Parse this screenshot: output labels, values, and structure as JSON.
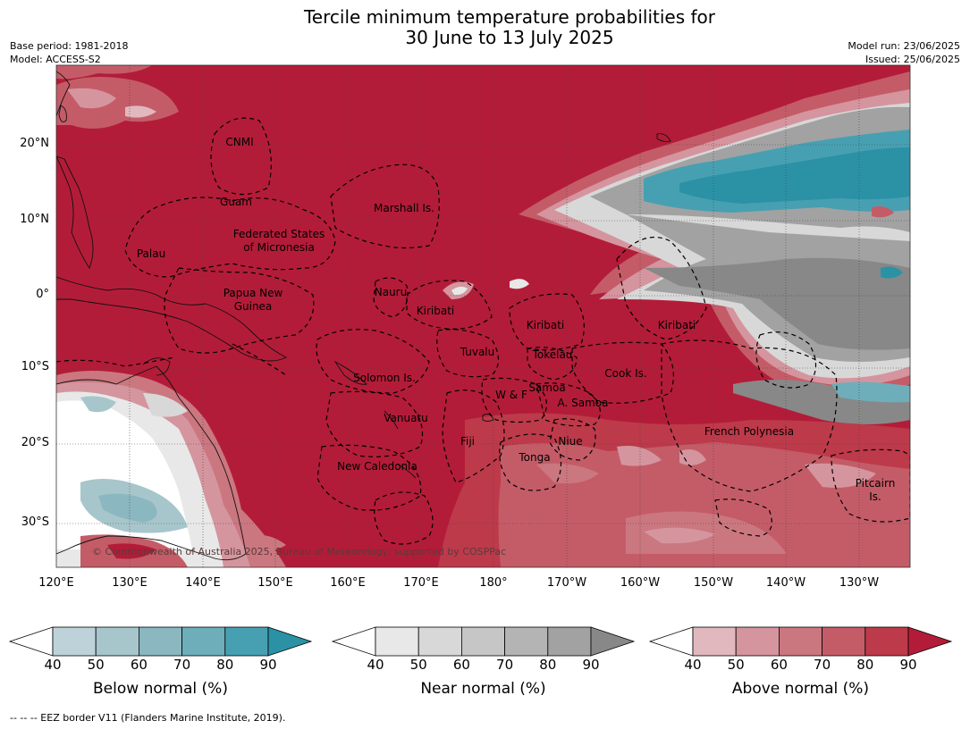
{
  "title": {
    "line1": "Tercile minimum temperature probabilities for",
    "line2": "30 June to 13 July 2025"
  },
  "info": {
    "base_period": "Base period: 1981-2018",
    "model": "Model: ACCESS-S2",
    "model_run": "Model run: 23/06/2025",
    "issued": "Issued: 25/06/2025"
  },
  "axes": {
    "lat_labels": [
      "20°N",
      "10°N",
      "0°",
      "10°S",
      "20°S",
      "30°S"
    ],
    "lon_labels": [
      "120°E",
      "130°E",
      "140°E",
      "150°E",
      "160°E",
      "170°E",
      "180°",
      "170°W",
      "160°W",
      "150°W",
      "140°W",
      "130°W"
    ]
  },
  "regions": [
    {
      "name": "CNMI"
    },
    {
      "name": "Guam"
    },
    {
      "name": "Marshall Is."
    },
    {
      "name": "Federated States"
    },
    {
      "name": "of Micronesia"
    },
    {
      "name": "Palau"
    },
    {
      "name": "Papua New"
    },
    {
      "name": "Guinea"
    },
    {
      "name": "Nauru"
    },
    {
      "name": "Kiribati"
    },
    {
      "name": "Kiribati"
    },
    {
      "name": "Kiribati"
    },
    {
      "name": "Tuvalu"
    },
    {
      "name": "Tokelau"
    },
    {
      "name": "Cook Is."
    },
    {
      "name": "Solomon Is."
    },
    {
      "name": "Samoa"
    },
    {
      "name": "W & F"
    },
    {
      "name": "A. Samoa"
    },
    {
      "name": "Vanuatu"
    },
    {
      "name": "Fiji"
    },
    {
      "name": "Niue"
    },
    {
      "name": "French Polynesia"
    },
    {
      "name": "Tonga"
    },
    {
      "name": "New Caledonia"
    },
    {
      "name": "Pitcairn"
    },
    {
      "name": "Is."
    }
  ],
  "copyright": "© Commonwealth of Australia 2025, Bureau of Meteorology, supported by COSPPac",
  "colorbars": [
    {
      "label": "Below normal (%)",
      "ticks": [
        "40",
        "50",
        "60",
        "70",
        "80",
        "90"
      ],
      "colors": [
        "#ffffff",
        "#bdd3d9",
        "#a7c6cc",
        "#8bb7c0",
        "#6eaebb",
        "#47a0b2",
        "#2b92a6"
      ]
    },
    {
      "label": "Near normal (%)",
      "ticks": [
        "40",
        "50",
        "60",
        "70",
        "80",
        "90"
      ],
      "colors": [
        "#ffffff",
        "#e8e8e8",
        "#d8d8d8",
        "#c6c6c6",
        "#b4b4b4",
        "#a2a2a2",
        "#888888"
      ]
    },
    {
      "label": "Above normal (%)",
      "ticks": [
        "40",
        "50",
        "60",
        "70",
        "80",
        "90"
      ],
      "colors": [
        "#ffffff",
        "#e0b8be",
        "#d5959e",
        "#cb7780",
        "#c45c68",
        "#bd3a4a",
        "#b31c38"
      ]
    }
  ],
  "footnote": "-- -- -- EEZ border V11 (Flanders Marine Institute, 2019).",
  "colors": {
    "above_strong": "#b31c38",
    "above_medium": "#c45c68",
    "above_light": "#d5959e",
    "near_light": "#d8d8d8",
    "near_dark": "#888888",
    "below_strong": "#2b92a6",
    "below_light": "#a7c6cc"
  }
}
